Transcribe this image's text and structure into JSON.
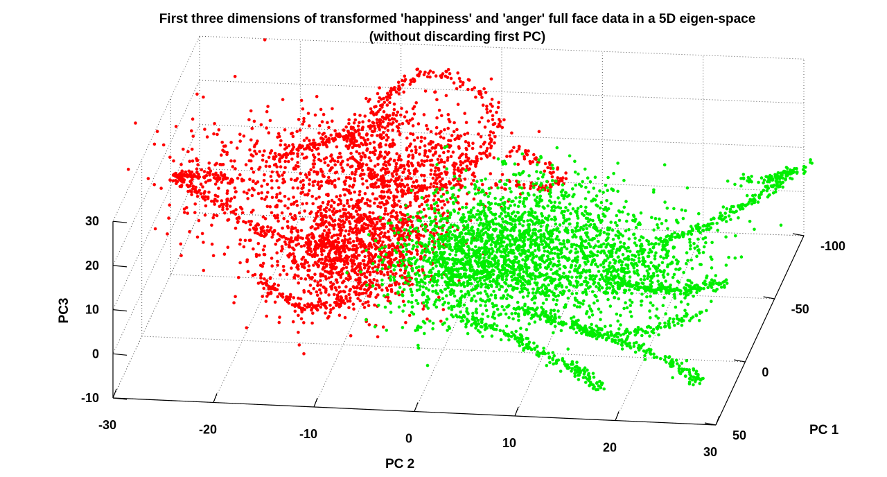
{
  "chart_data": {
    "type": "scatter",
    "title": "First three dimensions of transformed 'happiness' and 'anger' full face data in a 5D eigen-space",
    "subtitle": "(without discarding first PC)",
    "xlabel": "PC 2",
    "ylabel": "PC 1",
    "zlabel": "PC3",
    "x_ticks": [
      "-30",
      "-20",
      "-10",
      "0",
      "10",
      "20",
      "30"
    ],
    "y_ticks": [
      "50",
      "0",
      "-50",
      "-100"
    ],
    "z_ticks": [
      "-10",
      "0",
      "10",
      "20",
      "30"
    ],
    "xlim": [
      -30,
      30
    ],
    "ylim": [
      -100,
      50
    ],
    "zlim": [
      -10,
      30
    ],
    "grid": true,
    "projection": "3d",
    "series": [
      {
        "color": "#ff0000",
        "clusters": [
          {
            "pc2": -9,
            "pc1": 0,
            "pc3": 12,
            "s2": 4.5,
            "s1": 18,
            "s3": 5,
            "n": 1300
          },
          {
            "pc2": -11,
            "pc1": -35,
            "pc3": 22,
            "s2": 5,
            "s1": 15,
            "s3": 5,
            "n": 350
          },
          {
            "pc2": -6,
            "pc1": -75,
            "pc3": 12,
            "s2": 3.5,
            "s1": 12,
            "s3": 5,
            "n": 250
          },
          {
            "pc2": -22,
            "pc1": -20,
            "pc3": 21,
            "s2": 4,
            "s1": 18,
            "s3": 5,
            "n": 220
          },
          {
            "pc2": -10,
            "pc1": -60,
            "pc3": 10,
            "s2": 6,
            "s1": 20,
            "s3": 4,
            "n": 220
          }
        ],
        "paths": [
          {
            "pc2": [
              -14,
              -12,
              -10,
              -8,
              -5,
              -1,
              1,
              0,
              -3,
              -6,
              -10,
              -13,
              -14
            ],
            "pc1": [
              -82,
              -88,
              -92,
              -95,
              -95,
              -90,
              -80,
              -70,
              -60,
              -58,
              -62,
              -72,
              -82
            ],
            "pc3": [
              14,
              18,
              22,
              25,
              25,
              22,
              18,
              14,
              10,
              9,
              10,
              12,
              14
            ],
            "n": 260
          },
          {
            "pc2": [
              -24,
              -26,
              -27,
              -26,
              -22,
              -18,
              -14,
              -11
            ],
            "pc1": [
              -40,
              -25,
              -10,
              5,
              12,
              15,
              10,
              0
            ],
            "pc3": [
              15,
              20,
              24,
              27,
              25,
              20,
              16,
              12
            ],
            "n": 200
          },
          {
            "pc2": [
              -18,
              -15,
              -12,
              -9,
              -7
            ],
            "pc1": [
              10,
              20,
              25,
              22,
              15
            ],
            "pc3": [
              8,
              6,
              5,
              6,
              8
            ],
            "n": 120
          },
          {
            "pc2": [
              2,
              5,
              8,
              6,
              2
            ],
            "pc1": [
              -85,
              -80,
              -70,
              -60,
              -55
            ],
            "pc3": [
              12,
              10,
              9,
              10,
              12
            ],
            "n": 90
          },
          {
            "pc2": [
              -20,
              -16,
              -12,
              -9
            ],
            "pc1": [
              -55,
              -60,
              -65,
              -70
            ],
            "pc3": [
              16,
              18,
              20,
              22
            ],
            "n": 120
          }
        ]
      },
      {
        "color": "#00ee00",
        "clusters": [
          {
            "pc2": 3,
            "pc1": -5,
            "pc3": 10,
            "s2": 4,
            "s1": 22,
            "s3": 3,
            "n": 1400
          },
          {
            "pc2": 12,
            "pc1": -5,
            "pc3": 9,
            "s2": 4,
            "s1": 20,
            "s3": 3,
            "n": 700
          },
          {
            "pc2": 20,
            "pc1": -10,
            "pc3": 8,
            "s2": 3.5,
            "s1": 18,
            "s3": 3,
            "n": 350
          },
          {
            "pc2": 7,
            "pc1": -40,
            "pc3": 12,
            "s2": 5,
            "s1": 15,
            "s3": 3,
            "n": 250
          }
        ],
        "paths": [
          {
            "pc2": [
              3,
              8,
              12,
              16,
              18
            ],
            "pc1": [
              25,
              30,
              35,
              40,
              45
            ],
            "pc3": [
              5,
              3,
              0,
              -2,
              -4
            ],
            "n": 200
          },
          {
            "pc2": [
              8,
              14,
              20,
              25,
              28
            ],
            "pc1": [
              20,
              25,
              30,
              38,
              45
            ],
            "pc3": [
              6,
              4,
              2,
              0,
              -2
            ],
            "n": 200
          },
          {
            "pc2": [
              15,
              20,
              24,
              28
            ],
            "pc1": [
              0,
              5,
              8,
              5
            ],
            "pc3": [
              8,
              7,
              8,
              9
            ],
            "n": 180
          },
          {
            "pc2": [
              20,
              24,
              27,
              29,
              30
            ],
            "pc1": [
              -20,
              -30,
              -45,
              -60,
              -75
            ],
            "pc3": [
              10,
              11,
              12,
              12,
              12
            ],
            "n": 180
          },
          {
            "pc2": [
              25,
              28,
              30,
              32
            ],
            "pc1": [
              -65,
              -70,
              -75,
              -85
            ],
            "pc3": [
              12,
              11,
              11,
              11
            ],
            "n": 60
          },
          {
            "pc2": [
              10,
              14,
              18,
              22,
              26
            ],
            "pc1": [
              15,
              20,
              22,
              18,
              10
            ],
            "pc3": [
              4,
              2,
              1,
              2,
              3
            ],
            "n": 150
          }
        ]
      }
    ]
  }
}
